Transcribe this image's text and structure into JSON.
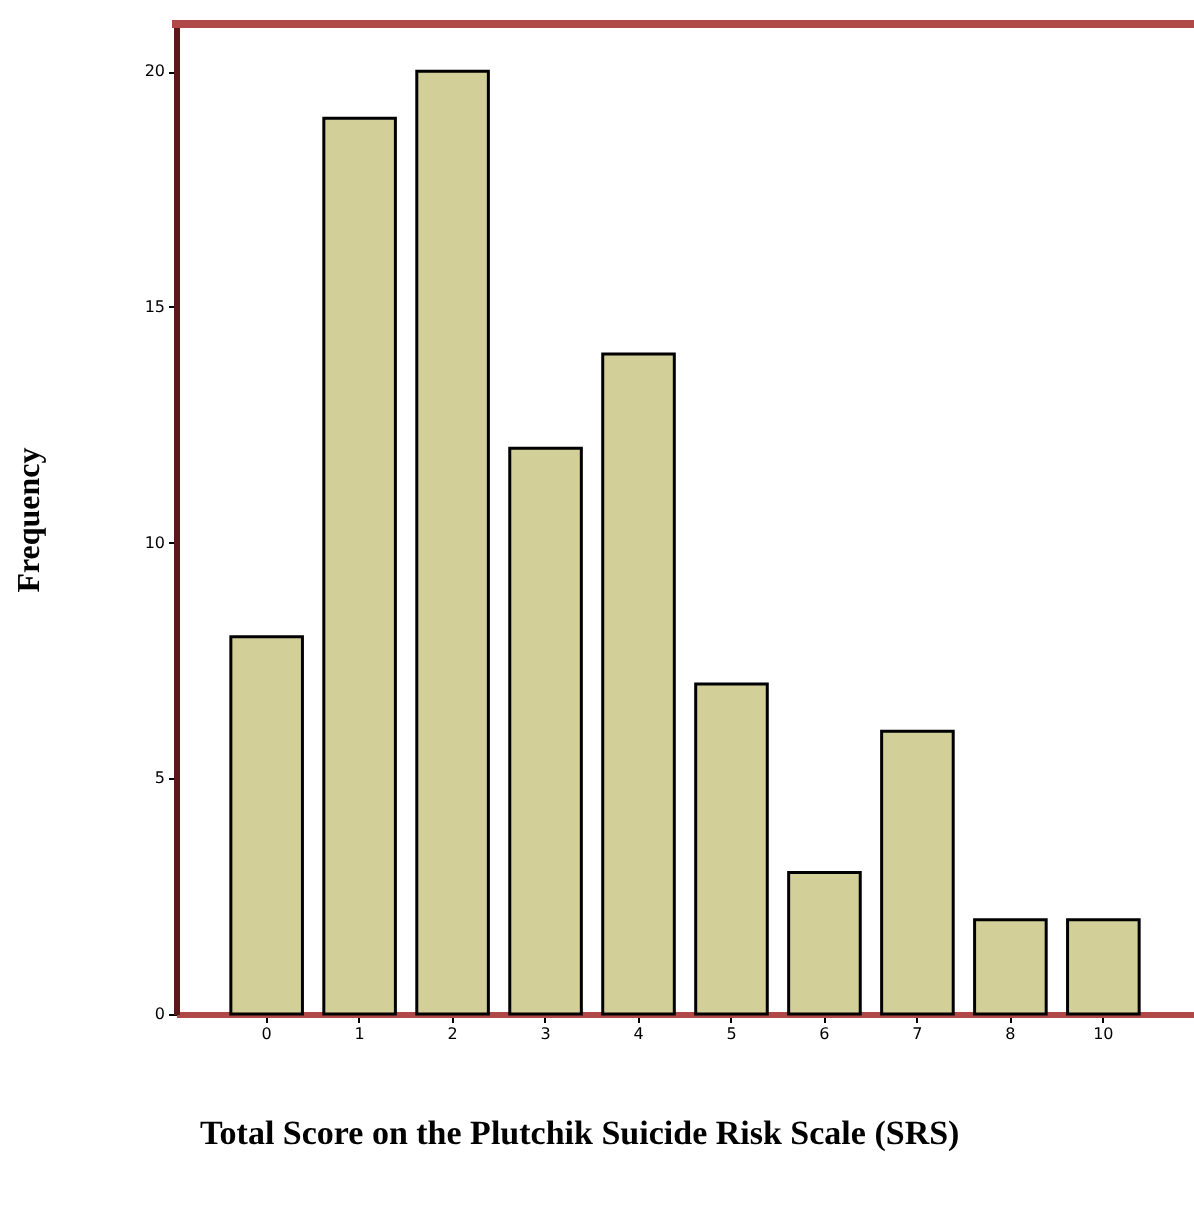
{
  "chart_data": {
    "type": "bar",
    "xlabel": "Total Score on the Plutchik Suicide Risk Scale (SRS)",
    "ylabel": "Frequency",
    "categories": [
      "0",
      "1",
      "2",
      "3",
      "4",
      "5",
      "6",
      "7",
      "8",
      "10"
    ],
    "values": [
      8,
      19,
      20,
      12,
      14,
      7,
      3,
      6,
      2,
      2
    ],
    "color": "#d3cf98",
    "ylim": [
      0,
      21
    ],
    "yticks": [
      0,
      5,
      10,
      15,
      20
    ]
  }
}
